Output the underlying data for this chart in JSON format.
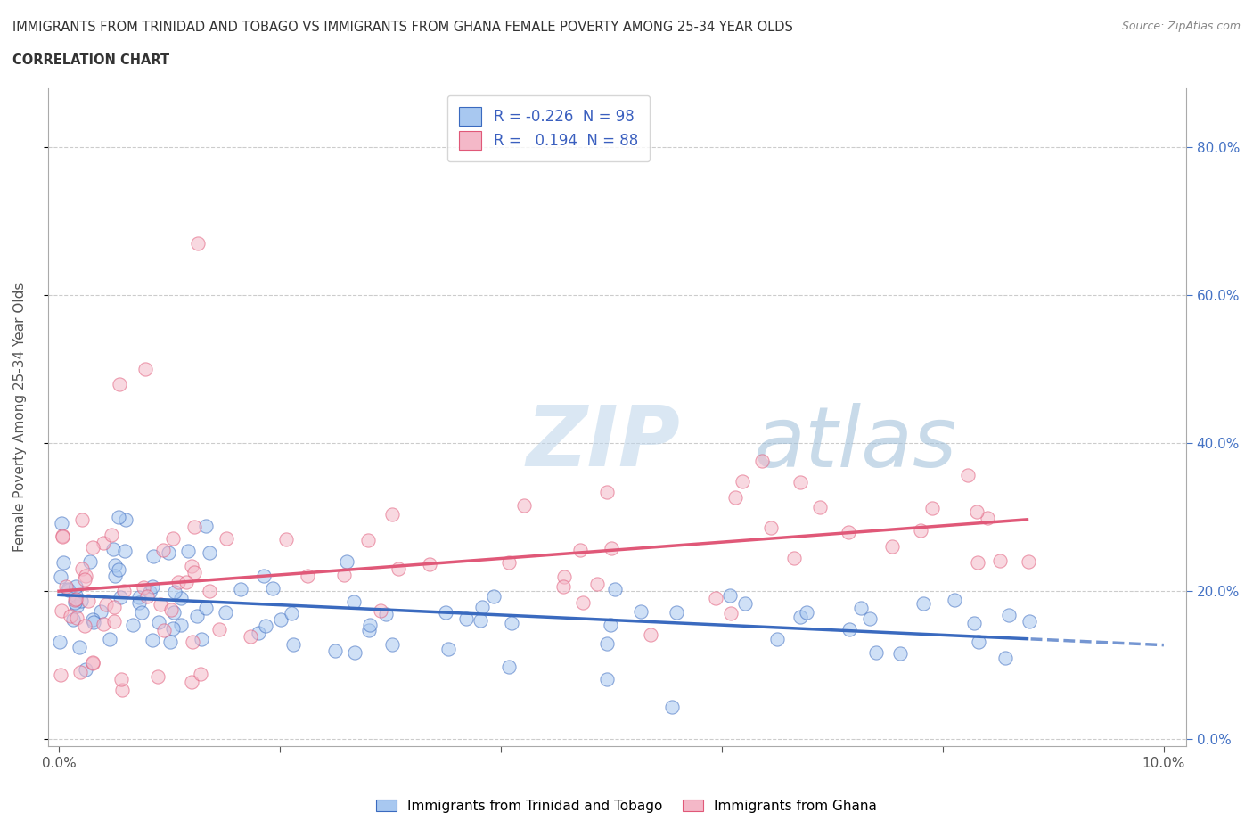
{
  "title_line1": "IMMIGRANTS FROM TRINIDAD AND TOBAGO VS IMMIGRANTS FROM GHANA FEMALE POVERTY AMONG 25-34 YEAR OLDS",
  "title_line2": "CORRELATION CHART",
  "source_text": "Source: ZipAtlas.com",
  "ylabel": "Female Poverty Among 25-34 Year Olds",
  "xlim": [
    -0.001,
    0.102
  ],
  "ylim": [
    -0.01,
    0.88
  ],
  "color_tt": "#a8c8f0",
  "color_tt_fill": "#c8dff8",
  "color_tt_line": "#3a6abf",
  "color_gh": "#f4b8c8",
  "color_gh_fill": "#f8d0dc",
  "color_gh_line": "#e05878",
  "legend_R_tt": "-0.226",
  "legend_N_tt": "98",
  "legend_R_gh": "0.194",
  "legend_N_gh": "88",
  "background_color": "#ffffff",
  "grid_color": "#cccccc",
  "watermark_color": "#d8e8f4"
}
